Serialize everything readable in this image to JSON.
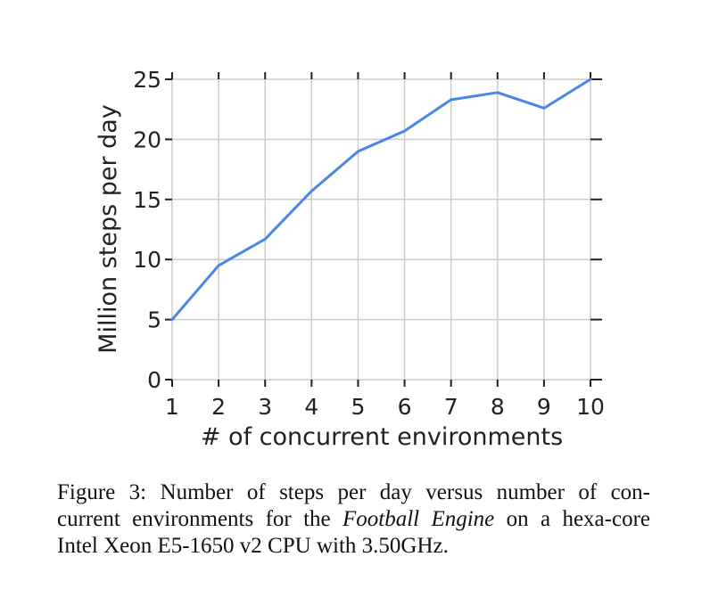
{
  "chart_data": {
    "type": "line",
    "title": "",
    "xlabel": "# of concurrent environments",
    "ylabel": "Million steps per day",
    "x": [
      1,
      2,
      3,
      4,
      5,
      6,
      7,
      8,
      9,
      10
    ],
    "xticks": [
      "1",
      "2",
      "3",
      "4",
      "5",
      "6",
      "7",
      "8",
      "9",
      "10"
    ],
    "yticks": [
      "0",
      "5",
      "10",
      "15",
      "20",
      "25"
    ],
    "xlim": [
      1,
      10
    ],
    "ylim": [
      0,
      25
    ],
    "grid": true,
    "series": [
      {
        "values": [
          5.0,
          9.5,
          11.7,
          15.7,
          19.0,
          20.7,
          23.3,
          23.9,
          22.6,
          25.0
        ],
        "color": "#4a86e8"
      }
    ]
  },
  "caption": {
    "line1": "Figure 3: Number of steps per day versus number of con-",
    "line2_pre": "current environments for the ",
    "line2_em": "Football Engine",
    "line2_post": " on a hexa-core",
    "line3": "Intel Xeon E5-1650 v2 CPU with 3.50GHz."
  }
}
